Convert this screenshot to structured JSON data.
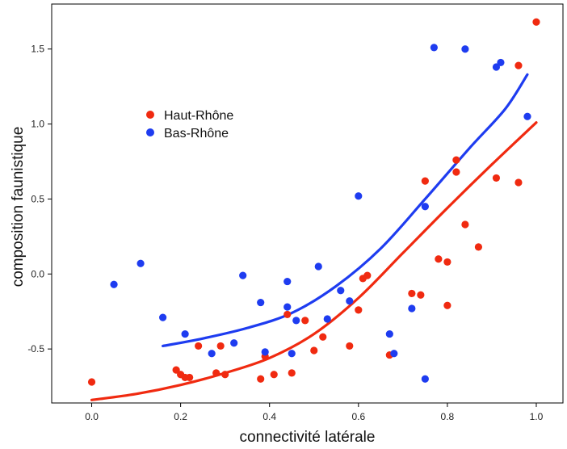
{
  "chart_data": {
    "type": "scatter",
    "xlabel": "connectivité latérale",
    "ylabel": "composition faunistique",
    "xlim": [
      -0.09,
      1.06
    ],
    "ylim": [
      -0.86,
      1.8
    ],
    "x_ticks": [
      "0.0",
      "0.2",
      "0.4",
      "0.6",
      "0.8",
      "1.0"
    ],
    "x_tick_values": [
      0.0,
      0.2,
      0.4,
      0.6,
      0.8,
      1.0
    ],
    "y_ticks": [
      "-0.5",
      "0.0",
      "0.5",
      "1.0",
      "1.5"
    ],
    "y_tick_values": [
      -0.5,
      0.0,
      0.5,
      1.0,
      1.5
    ],
    "grid": false,
    "legend_placement": "upper-left",
    "series": [
      {
        "name": "Haut-Rhône",
        "color": "#f02a10",
        "points": [
          [
            0.0,
            -0.72
          ],
          [
            0.19,
            -0.64
          ],
          [
            0.2,
            -0.67
          ],
          [
            0.21,
            -0.69
          ],
          [
            0.22,
            -0.69
          ],
          [
            0.24,
            -0.48
          ],
          [
            0.28,
            -0.66
          ],
          [
            0.29,
            -0.48
          ],
          [
            0.3,
            -0.67
          ],
          [
            0.38,
            -0.7
          ],
          [
            0.39,
            -0.55
          ],
          [
            0.41,
            -0.67
          ],
          [
            0.44,
            -0.27
          ],
          [
            0.45,
            -0.66
          ],
          [
            0.48,
            -0.31
          ],
          [
            0.5,
            -0.51
          ],
          [
            0.52,
            -0.42
          ],
          [
            0.58,
            -0.48
          ],
          [
            0.6,
            -0.24
          ],
          [
            0.61,
            -0.03
          ],
          [
            0.62,
            -0.01
          ],
          [
            0.67,
            -0.54
          ],
          [
            0.72,
            -0.13
          ],
          [
            0.74,
            -0.14
          ],
          [
            0.75,
            0.62
          ],
          [
            0.78,
            0.1
          ],
          [
            0.8,
            0.08
          ],
          [
            0.8,
            -0.21
          ],
          [
            0.82,
            0.76
          ],
          [
            0.82,
            0.68
          ],
          [
            0.84,
            0.33
          ],
          [
            0.87,
            0.18
          ],
          [
            0.91,
            0.64
          ],
          [
            0.96,
            0.61
          ],
          [
            0.96,
            1.39
          ],
          [
            1.0,
            1.68
          ]
        ],
        "fit": [
          [
            0.0,
            -0.84
          ],
          [
            0.1,
            -0.8
          ],
          [
            0.2,
            -0.74
          ],
          [
            0.3,
            -0.66
          ],
          [
            0.4,
            -0.56
          ],
          [
            0.5,
            -0.4
          ],
          [
            0.6,
            -0.16
          ],
          [
            0.7,
            0.14
          ],
          [
            0.8,
            0.44
          ],
          [
            0.9,
            0.73
          ],
          [
            1.0,
            1.01
          ]
        ]
      },
      {
        "name": "Bas-Rhône",
        "color": "#1e3cf0",
        "points": [
          [
            0.05,
            -0.07
          ],
          [
            0.11,
            0.07
          ],
          [
            0.16,
            -0.29
          ],
          [
            0.21,
            -0.4
          ],
          [
            0.27,
            -0.53
          ],
          [
            0.32,
            -0.46
          ],
          [
            0.34,
            -0.01
          ],
          [
            0.38,
            -0.19
          ],
          [
            0.39,
            -0.52
          ],
          [
            0.44,
            -0.05
          ],
          [
            0.44,
            -0.22
          ],
          [
            0.45,
            -0.53
          ],
          [
            0.46,
            -0.31
          ],
          [
            0.51,
            0.05
          ],
          [
            0.53,
            -0.3
          ],
          [
            0.56,
            -0.11
          ],
          [
            0.58,
            -0.18
          ],
          [
            0.6,
            0.52
          ],
          [
            0.67,
            -0.4
          ],
          [
            0.68,
            -0.53
          ],
          [
            0.72,
            -0.23
          ],
          [
            0.75,
            -0.7
          ],
          [
            0.75,
            0.45
          ],
          [
            0.77,
            1.51
          ],
          [
            0.84,
            1.5
          ],
          [
            0.91,
            1.38
          ],
          [
            0.92,
            1.41
          ],
          [
            0.98,
            1.05
          ]
        ],
        "fit": [
          [
            0.16,
            -0.48
          ],
          [
            0.25,
            -0.43
          ],
          [
            0.35,
            -0.36
          ],
          [
            0.45,
            -0.26
          ],
          [
            0.55,
            -0.08
          ],
          [
            0.65,
            0.17
          ],
          [
            0.75,
            0.5
          ],
          [
            0.85,
            0.84
          ],
          [
            0.93,
            1.1
          ],
          [
            0.98,
            1.33
          ]
        ]
      }
    ]
  }
}
